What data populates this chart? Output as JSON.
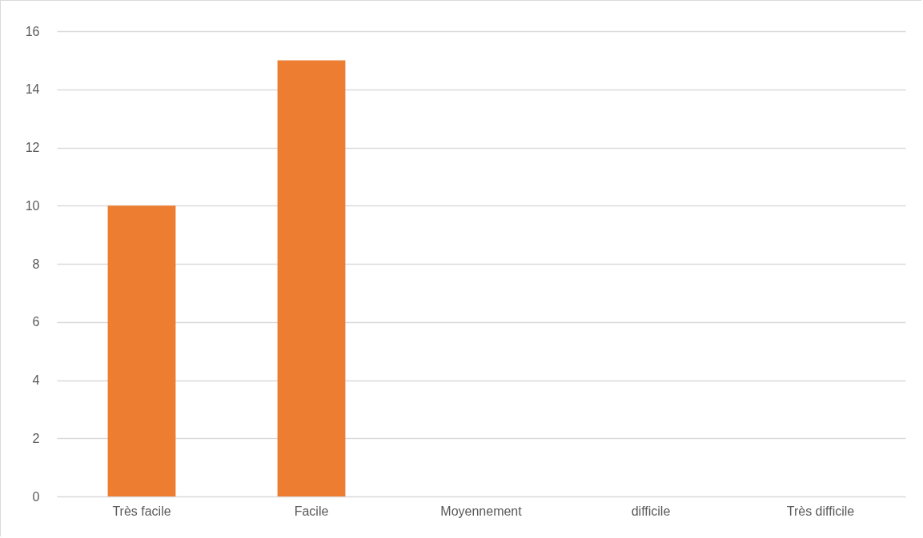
{
  "chart_data": {
    "type": "bar",
    "categories": [
      "Très facile",
      "Facile",
      "Moyennement",
      "difficile",
      "Très difficile"
    ],
    "values": [
      10,
      15,
      0,
      0,
      0
    ],
    "color": "#ed7d31",
    "ylim": [
      0,
      16
    ],
    "yticks": [
      0,
      2,
      4,
      6,
      8,
      10,
      12,
      14,
      16
    ],
    "grid": "y"
  }
}
